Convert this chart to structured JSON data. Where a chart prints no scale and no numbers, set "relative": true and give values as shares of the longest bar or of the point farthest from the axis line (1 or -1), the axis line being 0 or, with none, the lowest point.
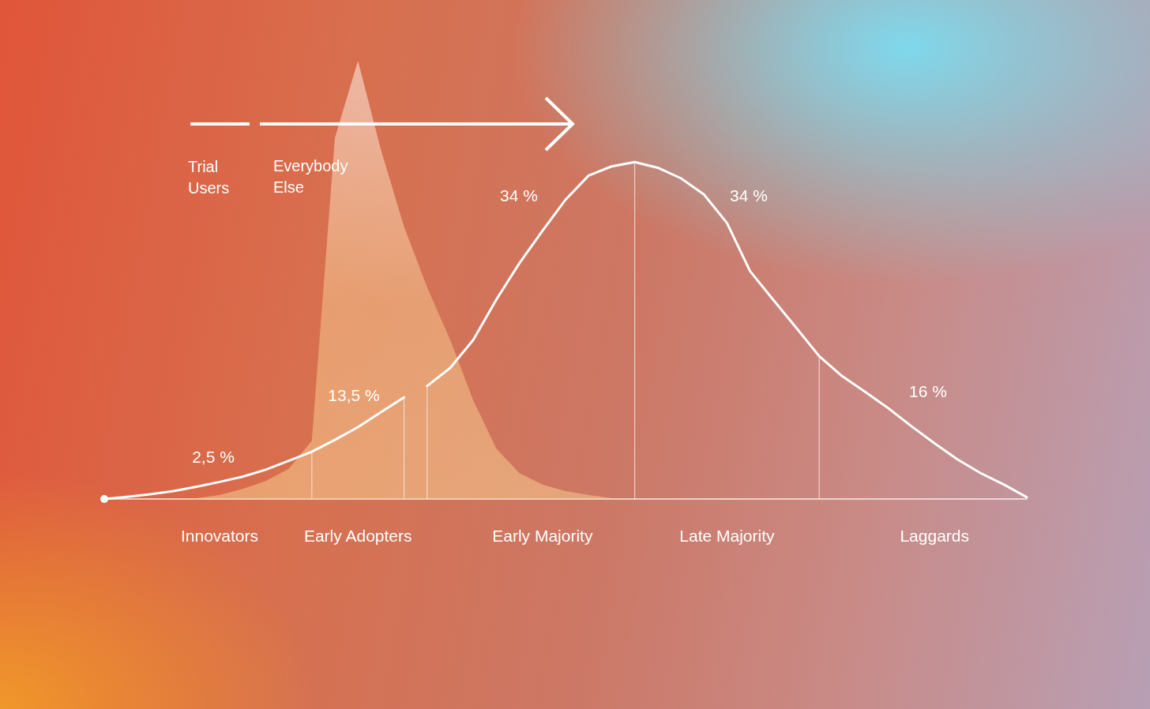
{
  "chart_data": {
    "type": "line",
    "relative": true,
    "grid": false,
    "categories": [
      null,
      null,
      null,
      null,
      null,
      "Innovators",
      null,
      null,
      null,
      null,
      null,
      "Early Adopters",
      null,
      null,
      null,
      null,
      null,
      null,
      null,
      "Early Majority",
      null,
      null,
      null,
      null,
      null,
      null,
      null,
      "Late Majority",
      null,
      null,
      null,
      null,
      null,
      null,
      null,
      null,
      "Laggards",
      null,
      null,
      null,
      null
    ],
    "series": [
      {
        "type": "area",
        "color": "#f7c98e",
        "values": [
          0,
          0,
          0,
          0,
          0.002,
          0.009,
          0.023,
          0.041,
          0.069,
          0.133,
          0.824,
          1,
          0.796,
          0.621,
          0.483,
          0.363,
          0.225,
          0.115,
          0.059,
          0.033,
          0.018,
          0.009,
          0.002,
          0,
          0,
          0,
          0,
          0,
          0,
          0,
          0,
          0,
          0,
          0,
          0,
          0,
          0,
          0,
          0,
          0,
          0
        ]
      },
      {
        "color": "#ffffff",
        "values": [
          0,
          0.005,
          0.011,
          0.018,
          0.028,
          0.039,
          0.051,
          0.067,
          0.087,
          0.108,
          0.135,
          0.164,
          0.198,
          0.232,
          null,
          null,
          null,
          null,
          null,
          null,
          null,
          null,
          null,
          null,
          null,
          null,
          null,
          null,
          null,
          null,
          null,
          null,
          null,
          null,
          null,
          null,
          null,
          null,
          null,
          null,
          null
        ]
      },
      {
        "color": "#ffffff",
        "values": [
          null,
          null,
          null,
          null,
          null,
          null,
          null,
          null,
          null,
          null,
          null,
          null,
          null,
          null,
          0.258,
          0.299,
          0.363,
          0.455,
          0.538,
          0.612,
          0.683,
          0.738,
          0.759,
          0.769,
          0.756,
          0.732,
          0.695,
          0.63,
          0.52,
          0.455,
          0.391,
          0.326,
          0.28,
          0.244,
          0.207,
          0.166,
          0.127,
          0.09,
          0.059,
          0.033,
          0.004
        ]
      },
      {
        "type": "bar",
        "color": "#f3e6e0",
        "values": [
          null,
          null,
          null,
          null,
          null,
          null,
          null,
          null,
          null,
          0.108,
          null,
          null,
          null,
          0.232,
          0.258,
          null,
          null,
          null,
          null,
          null,
          null,
          null,
          null,
          0.769,
          null,
          null,
          null,
          null,
          null,
          null,
          null,
          0.326,
          null,
          null,
          null,
          null,
          null,
          null,
          null,
          null,
          null
        ]
      }
    ],
    "annotations": [
      "2,5 %",
      "13,5 %",
      "34 %",
      "34 %",
      "16 %",
      "Trial Users",
      "Everybody Else"
    ]
  }
}
